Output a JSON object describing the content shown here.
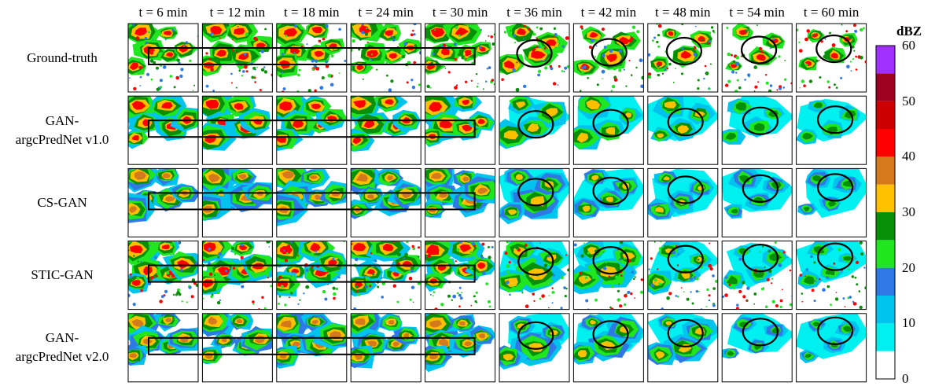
{
  "columns": [
    "t = 6 min",
    "t = 12 min",
    "t = 18 min",
    "t = 24 min",
    "t = 30 min",
    "t = 36 min",
    "t = 42 min",
    "t = 48 min",
    "t = 54 min",
    "t = 60 min"
  ],
  "rows": [
    {
      "label_lines": [
        "Ground-truth"
      ],
      "style": "truth"
    },
    {
      "label_lines": [
        "GAN-",
        "argcPredNet v1.0"
      ],
      "style": "v1"
    },
    {
      "label_lines": [
        "CS-GAN"
      ],
      "style": "cs"
    },
    {
      "label_lines": [
        "STIC-GAN"
      ],
      "style": "stic"
    },
    {
      "label_lines": [
        "GAN-",
        "argcPredNet v2.0"
      ],
      "style": "v2"
    }
  ],
  "colorbar": {
    "title": "dBZ",
    "ticks": [
      "60",
      "50",
      "40",
      "30",
      "20",
      "10",
      "0"
    ],
    "levels": [
      {
        "from": 0,
        "to": 5,
        "color": "#ffffff"
      },
      {
        "from": 5,
        "to": 10,
        "color": "#00f0f0"
      },
      {
        "from": 10,
        "to": 15,
        "color": "#00c4ee"
      },
      {
        "from": 15,
        "to": 20,
        "color": "#2f79e6"
      },
      {
        "from": 20,
        "to": 25,
        "color": "#1fe61f"
      },
      {
        "from": 25,
        "to": 30,
        "color": "#078f07"
      },
      {
        "from": 30,
        "to": 35,
        "color": "#ffc000"
      },
      {
        "from": 35,
        "to": 40,
        "color": "#d57a1c"
      },
      {
        "from": 40,
        "to": 45,
        "color": "#ff0000"
      },
      {
        "from": 45,
        "to": 50,
        "color": "#cc0000"
      },
      {
        "from": 50,
        "to": 55,
        "color": "#a00020"
      },
      {
        "from": 55,
        "to": 60,
        "color": "#a030ff"
      }
    ]
  },
  "markers": {
    "rectangle_columns": [
      "t = 6 min",
      "t = 30 min"
    ],
    "ellipse_columns": [
      "t = 36 min",
      "t = 60 min"
    ]
  }
}
